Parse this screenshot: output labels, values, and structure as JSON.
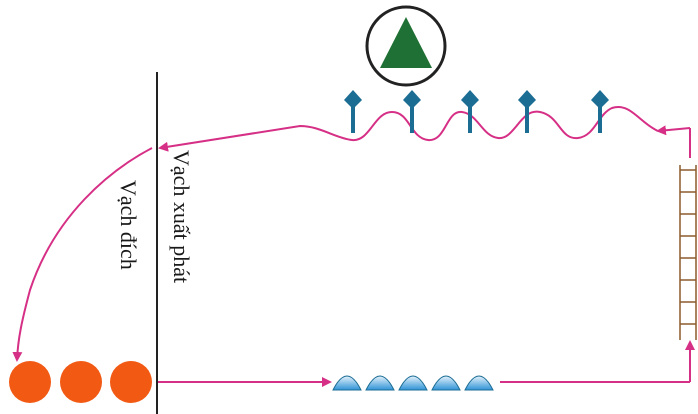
{
  "labels": {
    "start_line": "Vạch xuất phát",
    "finish_line": "Vạch đích"
  },
  "colors": {
    "path": "#d62f86",
    "marker": "#1c6d94",
    "cone_fill": "#1f7034",
    "ball": "#f25a14",
    "hurdle": "#8b5a2b",
    "hump_light": "#c6e4f7",
    "hump_dark": "#2f93d6"
  },
  "elements": {
    "cone_icon": "triangle-in-circle-icon",
    "marker_icon": "pin-marker-icon",
    "hump_icon": "hump-icon",
    "ball_icon": "ball-icon",
    "ladder_icon": "ladder-icon"
  }
}
